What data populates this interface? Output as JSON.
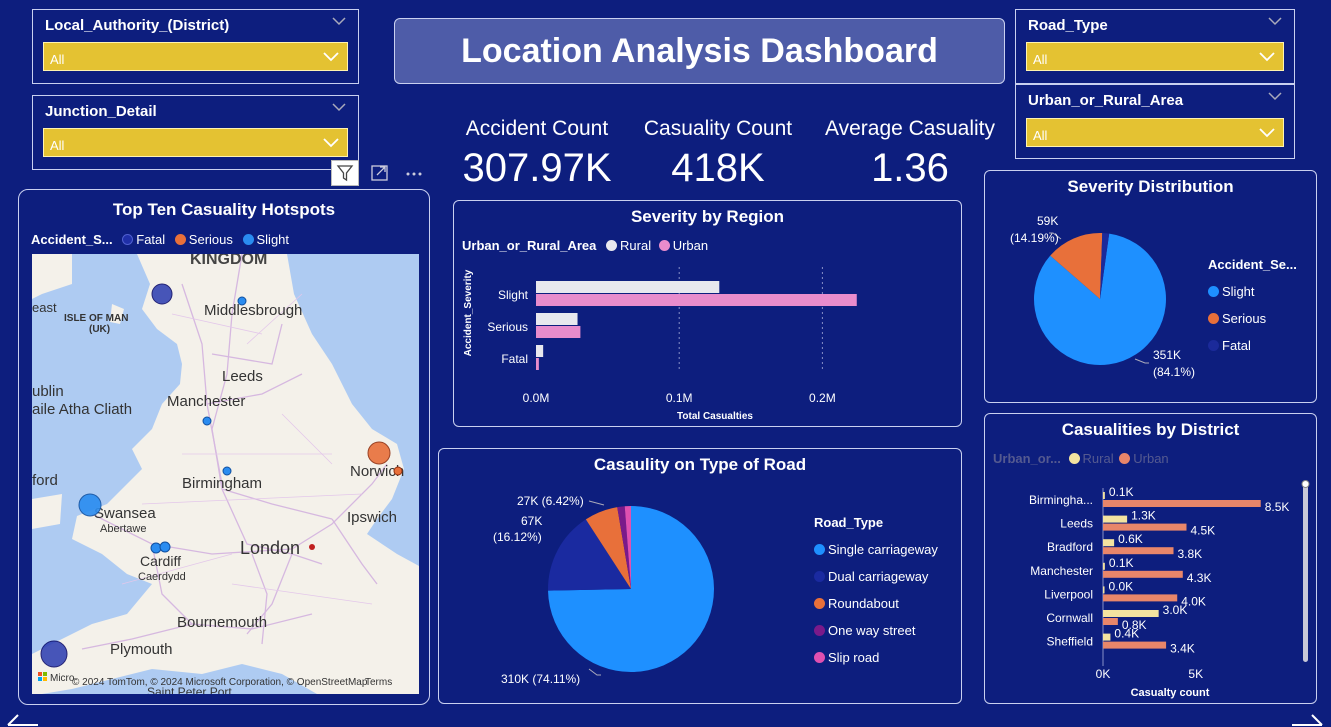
{
  "dashboard_title": "Location Analysis Dashboard",
  "slicers": {
    "local_authority": {
      "label": "Local_Authority_(District)",
      "value": "All"
    },
    "junction_detail": {
      "label": "Junction_Detail",
      "value": "All"
    },
    "road_type": {
      "label": "Road_Type",
      "value": "All"
    },
    "urban_rural": {
      "label": "Urban_or_Rural_Area",
      "value": "All"
    }
  },
  "kpis": {
    "accident_count": {
      "label": "Accident Count",
      "value": "307.97K"
    },
    "casualty_count": {
      "label": "Casuality Count",
      "value": "418K"
    },
    "average_casualty": {
      "label": "Average Casuality",
      "value": "1.36"
    }
  },
  "map": {
    "title": "Top Ten Casuality Hotspots",
    "legend_title": "Accident_S...",
    "legend": [
      {
        "name": "Fatal",
        "color": "#1f2fa8"
      },
      {
        "name": "Serious",
        "color": "#e8703a"
      },
      {
        "name": "Slight",
        "color": "#2a8cf0"
      }
    ],
    "places": {
      "kingdom": "KINGDOM",
      "isle_of_man": "ISLE OF MAN",
      "uk": "(UK)",
      "middlesbrough": "Middlesbrough",
      "leeds": "Leeds",
      "east": "east",
      "dublin": "ublin",
      "baile": "aile Atha Cliath",
      "manchester": "Manchester",
      "norwich": "Norwich",
      "ford": "ford",
      "birmingham": "Birmingham",
      "swansea": "Swansea",
      "abertawe": "Abertawe",
      "ipswich": "Ipswich",
      "cardiff": "Cardiff",
      "caerdydd": "Caerdydd",
      "london": "London",
      "bournemouth": "Bournemouth",
      "plymouth": "Plymouth",
      "saint_peter_port": "Saint Peter Port"
    },
    "attribution": "© 2024 TomTom, © 2024 Microsoft Corporation, © OpenStreetMap",
    "terms": "Terms",
    "ms_logo_text": "Micro"
  },
  "severity_by_region": {
    "chart_data": {
      "type": "bar",
      "title": "Severity by Region",
      "legend_title": "Urban_or_Rural_Area",
      "categories": [
        "Slight",
        "Serious",
        "Fatal"
      ],
      "series": [
        {
          "name": "Rural",
          "color": "#e8e8ee",
          "values": [
            128000,
            29000,
            5000
          ]
        },
        {
          "name": "Urban",
          "color": "#e88ccc",
          "values": [
            224000,
            31000,
            2000
          ]
        }
      ],
      "xlabel": "Total Casualties",
      "ylabel": "Accident_Severity",
      "xticks": [
        "0.0M",
        "0.1M",
        "0.2M"
      ],
      "xlim": [
        0,
        250000
      ]
    }
  },
  "severity_distribution": {
    "chart_data": {
      "type": "pie",
      "title": "Severity Distribution",
      "legend_title": "Accident_Se...",
      "slices": [
        {
          "name": "Slight",
          "value": 351,
          "label": "351K",
          "pct": "(84.1%)",
          "color": "#1e90ff"
        },
        {
          "name": "Serious",
          "value": 59,
          "label": "59K",
          "pct": "(14.19%)",
          "color": "#e8703a"
        },
        {
          "name": "Fatal",
          "value": 7,
          "label": "",
          "pct": "",
          "color": "#1b2a9a"
        }
      ]
    }
  },
  "casualty_road_type": {
    "chart_data": {
      "type": "pie",
      "title": "Casaulity on Type of Road",
      "legend_title": "Road_Type",
      "slices": [
        {
          "name": "Single carriageway",
          "value": 310,
          "label": "310K (74.11%)",
          "color": "#1e90ff"
        },
        {
          "name": "Dual carriageway",
          "value": 67,
          "label": "67K",
          "pct": "(16.12%)",
          "color": "#1a2aa0"
        },
        {
          "name": "Roundabout",
          "value": 27,
          "label": "27K (6.42%)",
          "color": "#e8703a"
        },
        {
          "name": "One way street",
          "value": 6,
          "label": "",
          "color": "#7a1a8a"
        },
        {
          "name": "Slip road",
          "value": 5,
          "label": "",
          "color": "#e050b0"
        }
      ]
    }
  },
  "casualties_by_district": {
    "chart_data": {
      "type": "bar",
      "title": "Casualities by District",
      "legend_title": "Urban_or...",
      "categories": [
        "Birmingha...",
        "Leeds",
        "Bradford",
        "Manchester",
        "Liverpool",
        "Cornwall",
        "Sheffield"
      ],
      "series": [
        {
          "name": "Rural",
          "color": "#f3e3a0",
          "values": [
            0.1,
            1.3,
            0.6,
            0.1,
            0.0,
            3.0,
            0.4
          ],
          "labels": [
            "0.1K",
            "1.3K",
            "0.6K",
            "0.1K",
            "0.0K",
            "3.0K",
            "0.4K"
          ]
        },
        {
          "name": "Urban",
          "color": "#e8866a",
          "values": [
            8.5,
            4.5,
            3.8,
            4.3,
            4.0,
            0.8,
            3.4
          ],
          "labels": [
            "8.5K",
            "4.5K",
            "3.8K",
            "4.3K",
            "4.0K",
            "0.8K",
            "3.4K"
          ]
        }
      ],
      "xlabel": "Casualty count",
      "xticks": [
        "0K",
        "5K"
      ],
      "xlim": [
        0,
        9
      ]
    }
  },
  "icons": [
    "filter-icon",
    "focus-mode-icon",
    "more-options-icon",
    "chevron-down-icon",
    "back-arrow-icon",
    "forward-arrow-icon"
  ]
}
